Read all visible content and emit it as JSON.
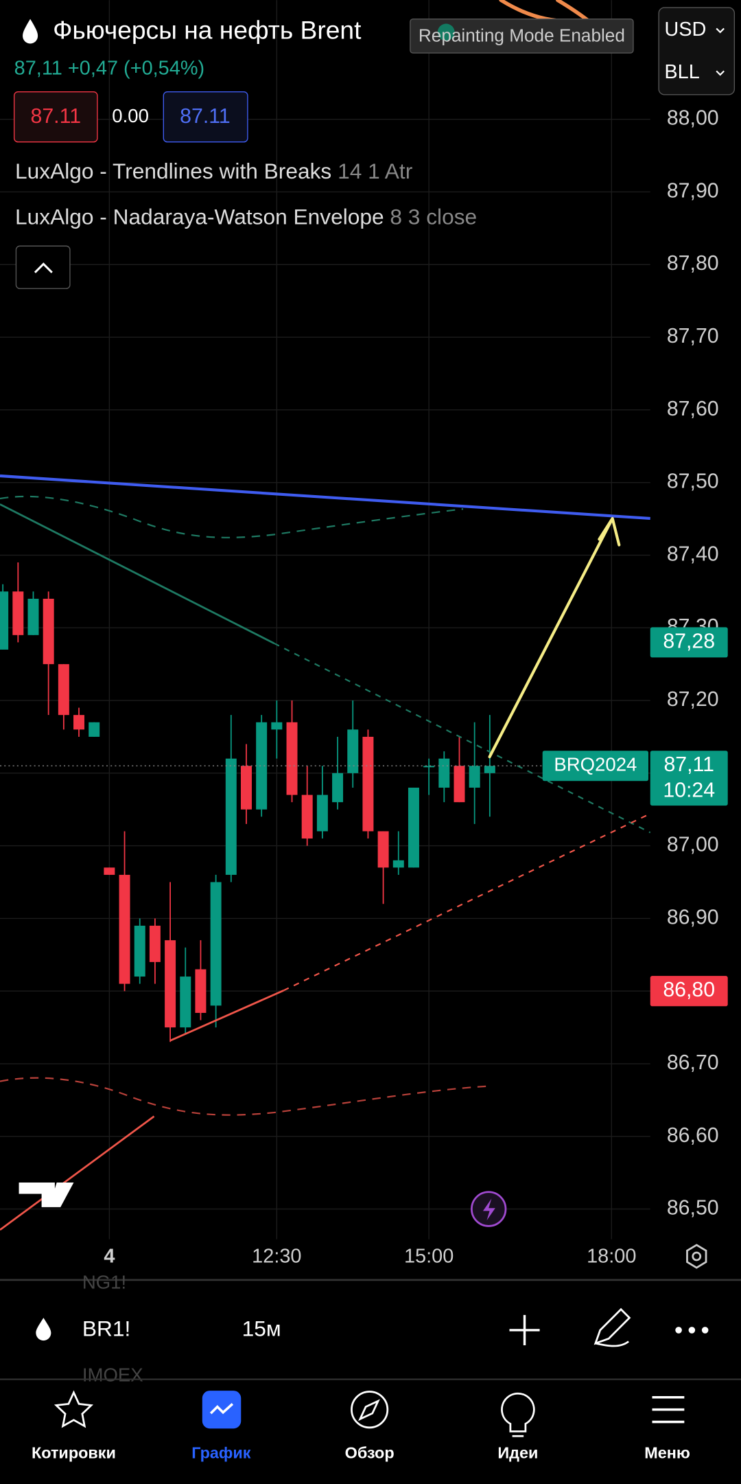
{
  "header": {
    "title": "Фьючерсы на нефть Brent",
    "price": "87,11",
    "change": "+0,47 (+0,54%)",
    "sell": "87.11",
    "spread": "0.00",
    "buy": "87.11",
    "currency": "USD",
    "unit": "BLL",
    "notice": "Repainting Mode Enabled"
  },
  "indicators": [
    {
      "name": "LuxAlgo - Trendlines with Breaks",
      "params": "14 1 Atr"
    },
    {
      "name": "LuxAlgo - Nadaraya-Watson Envelope",
      "params": "8 3 close"
    }
  ],
  "chart_data": {
    "type": "candlestick",
    "categories": [
      null,
      null,
      null,
      null,
      null,
      null,
      null,
      "4",
      null,
      null,
      null,
      null,
      null,
      null,
      null,
      null,
      null,
      null,
      "12:30",
      null,
      null,
      null,
      null,
      null,
      null,
      null,
      null,
      null,
      "15:00",
      null,
      null,
      null,
      null,
      null,
      null,
      null,
      null,
      null,
      null,
      null,
      "18:00"
    ],
    "open": [
      87.27,
      87.35,
      87.29,
      87.34,
      87.25,
      87.18,
      87.15,
      86.97,
      86.96,
      86.82,
      86.89,
      86.87,
      86.75,
      86.83,
      86.78,
      86.96,
      87.11,
      87.05,
      87.16,
      87.17,
      87.07,
      87.02,
      87.06,
      87.1,
      87.15,
      87.02,
      86.97,
      86.97,
      87.11,
      87.08,
      87.11,
      87.08,
      87.1,
      null,
      null,
      null,
      null,
      null,
      null,
      null,
      null
    ],
    "high": [
      87.36,
      87.39,
      87.35,
      87.35,
      87.25,
      87.19,
      87.17,
      86.97,
      87.02,
      86.9,
      86.9,
      86.95,
      86.86,
      86.87,
      86.96,
      87.18,
      87.14,
      87.18,
      87.2,
      87.2,
      87.11,
      87.11,
      87.15,
      87.2,
      87.16,
      87.02,
      87.02,
      87.08,
      87.12,
      87.13,
      87.15,
      87.17,
      87.18,
      null,
      null,
      null,
      null,
      null,
      null,
      null,
      null
    ],
    "low": [
      87.27,
      87.28,
      87.29,
      87.18,
      87.16,
      87.15,
      87.15,
      86.96,
      86.8,
      86.81,
      86.81,
      86.73,
      86.74,
      86.76,
      86.75,
      86.95,
      87.03,
      87.04,
      87.12,
      87.06,
      87.0,
      87.01,
      87.05,
      87.08,
      87.01,
      86.92,
      86.96,
      86.97,
      87.07,
      87.06,
      87.06,
      87.03,
      87.04,
      null,
      null,
      null,
      null,
      null,
      null,
      null,
      null
    ],
    "close": [
      87.35,
      87.29,
      87.34,
      87.25,
      87.18,
      87.16,
      87.17,
      86.96,
      86.81,
      86.89,
      86.84,
      86.75,
      86.82,
      86.77,
      86.95,
      87.12,
      87.05,
      87.17,
      87.17,
      87.07,
      87.01,
      87.07,
      87.1,
      87.16,
      87.02,
      86.97,
      86.98,
      87.08,
      87.11,
      87.12,
      87.06,
      87.11,
      87.11,
      null,
      null,
      null,
      null,
      null,
      null,
      null,
      null
    ],
    "up_color": "#089981",
    "down_color": "#f23645",
    "ylim": [
      86.46,
      88.16
    ],
    "yticks": [
      {
        "value": 86.5,
        "label": "86,50"
      },
      {
        "value": 86.6,
        "label": "86,60"
      },
      {
        "value": 86.7,
        "label": "86,70"
      },
      {
        "value": 86.8,
        "label": "86,80"
      },
      {
        "value": 86.9,
        "label": "86,90"
      },
      {
        "value": 87.0,
        "label": "87,00"
      },
      {
        "value": 87.1,
        "label": "87,10"
      },
      {
        "value": 87.2,
        "label": "87,20"
      },
      {
        "value": 87.3,
        "label": "87,30"
      },
      {
        "value": 87.4,
        "label": "87,40"
      },
      {
        "value": 87.5,
        "label": "87,50"
      },
      {
        "value": 87.6,
        "label": "87,60"
      },
      {
        "value": 87.7,
        "label": "87,70"
      },
      {
        "value": 87.8,
        "label": "87,80"
      },
      {
        "value": 87.9,
        "label": "87,90"
      },
      {
        "value": 88.0,
        "label": "88,00"
      }
    ],
    "grid": true,
    "price_labels": [
      {
        "value": 87.28,
        "label": "87,28",
        "color": "#089981"
      },
      {
        "value": 87.11,
        "label": "87,11",
        "time": "10:24",
        "tag": "BRQ2024",
        "color": "#089981"
      },
      {
        "value": 86.8,
        "label": "86,80",
        "color": "#f23645"
      }
    ]
  },
  "toolbar": {
    "symbol": "BR1!",
    "interval": "15м",
    "above": "NG1!",
    "below": "IMOEX"
  },
  "nav": [
    {
      "label": "Котировки"
    },
    {
      "label": "График",
      "active": true
    },
    {
      "label": "Обзор"
    },
    {
      "label": "Идеи"
    },
    {
      "label": "Меню"
    }
  ]
}
